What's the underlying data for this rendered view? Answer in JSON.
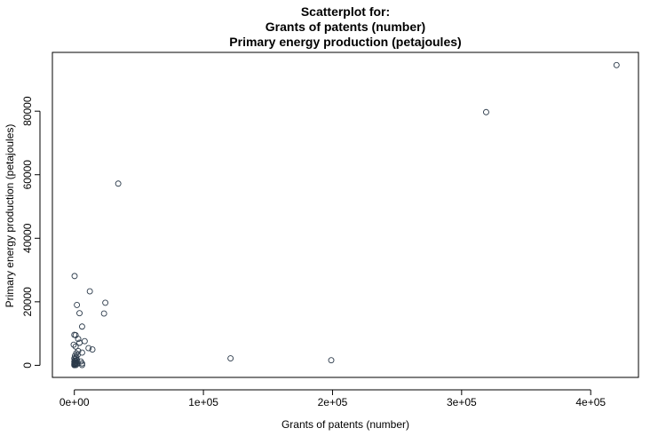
{
  "chart_data": {
    "type": "scatter",
    "title_lines": [
      "Scatterplot for:",
      "Grants of patents (number)",
      "Primary energy production (petajoules)"
    ],
    "xlabel": "Grants of patents (number)",
    "ylabel": "Primary energy production (petajoules)",
    "xlim": [
      -17000,
      437000
    ],
    "ylim": [
      -3800,
      98500
    ],
    "x_ticks": [
      0,
      100000,
      200000,
      300000,
      400000
    ],
    "x_tick_labels": [
      "0e+00",
      "1e+05",
      "2e+05",
      "3e+05",
      "4e+05"
    ],
    "y_ticks": [
      0,
      20000,
      40000,
      60000,
      80000
    ],
    "y_tick_labels": [
      "0",
      "20000",
      "40000",
      "60000",
      "80000"
    ],
    "grid": false,
    "legend": "none",
    "marker_color": "#2b3a4a",
    "points": [
      {
        "x": 420000,
        "y": 94500
      },
      {
        "x": 319000,
        "y": 79700
      },
      {
        "x": 34000,
        "y": 57200
      },
      {
        "x": 200,
        "y": 28100
      },
      {
        "x": 12000,
        "y": 23300
      },
      {
        "x": 2000,
        "y": 19000
      },
      {
        "x": 24000,
        "y": 19700
      },
      {
        "x": 4000,
        "y": 16400
      },
      {
        "x": 23000,
        "y": 16300
      },
      {
        "x": 6000,
        "y": 12200
      },
      {
        "x": 0,
        "y": 9600
      },
      {
        "x": 1000,
        "y": 9500
      },
      {
        "x": 3000,
        "y": 8300
      },
      {
        "x": 8000,
        "y": 7600
      },
      {
        "x": 4000,
        "y": 7100
      },
      {
        "x": -500,
        "y": 6500
      },
      {
        "x": 1000,
        "y": 5900
      },
      {
        "x": 11000,
        "y": 5400
      },
      {
        "x": 14000,
        "y": 5000
      },
      {
        "x": 3000,
        "y": 4500
      },
      {
        "x": 6000,
        "y": 4000
      },
      {
        "x": 1500,
        "y": 3800
      },
      {
        "x": 2500,
        "y": 3300
      },
      {
        "x": 500,
        "y": 3000
      },
      {
        "x": 1500,
        "y": 2500
      },
      {
        "x": 0,
        "y": 2200
      },
      {
        "x": 800,
        "y": 2000
      },
      {
        "x": 2000,
        "y": 1700
      },
      {
        "x": 200,
        "y": 1500
      },
      {
        "x": 1000,
        "y": 1300
      },
      {
        "x": 0,
        "y": 1100
      },
      {
        "x": 500,
        "y": 900
      },
      {
        "x": 1500,
        "y": 800
      },
      {
        "x": 200,
        "y": 700
      },
      {
        "x": 0,
        "y": 500
      },
      {
        "x": 800,
        "y": 400
      },
      {
        "x": 300,
        "y": 300
      },
      {
        "x": 100,
        "y": 200
      },
      {
        "x": 1200,
        "y": 100
      },
      {
        "x": 0,
        "y": 50
      },
      {
        "x": 2500,
        "y": 600
      },
      {
        "x": 5000,
        "y": 1200
      },
      {
        "x": 6000,
        "y": 600
      },
      {
        "x": 6000,
        "y": 100
      },
      {
        "x": 121000,
        "y": 2200
      },
      {
        "x": 199000,
        "y": 1600
      }
    ]
  }
}
